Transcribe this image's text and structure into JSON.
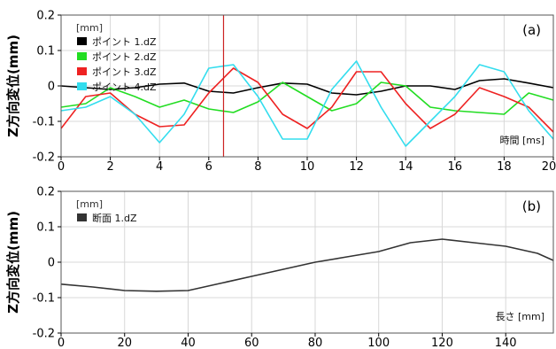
{
  "chart_data": [
    {
      "type": "line",
      "panel_label": "(a)",
      "ylabel": "Z方向変位(mm)",
      "unit_label": "[mm]",
      "xlabel": "時間 [ms]",
      "xlim": [
        0,
        20
      ],
      "ylim": [
        -0.2,
        0.2
      ],
      "x_ticks": [
        "0",
        "2",
        "4",
        "6",
        "8",
        "10",
        "12",
        "14",
        "16",
        "18",
        "20"
      ],
      "y_ticks": [
        "0.2",
        "0.1",
        "0",
        "-0.1",
        "-0.2"
      ],
      "grid": true,
      "legend_position": "top-left",
      "vertical_marker_x": 6.6,
      "colors": {
        "marker": "#cc2222"
      },
      "series": [
        {
          "name": "ポイント 1.dZ",
          "color": "#000000",
          "x": [
            0,
            1,
            2,
            3,
            4,
            5,
            6,
            7,
            8,
            9,
            10,
            11,
            12,
            13,
            14,
            15,
            16,
            17,
            18,
            19,
            20
          ],
          "values": [
            0.0,
            -0.005,
            -0.01,
            -0.005,
            0.005,
            0.008,
            -0.015,
            -0.02,
            -0.005,
            0.008,
            0.005,
            -0.02,
            -0.025,
            -0.015,
            0.0,
            0.0,
            -0.01,
            0.015,
            0.02,
            0.008,
            -0.005
          ]
        },
        {
          "name": "ポイント 2.dZ",
          "color": "#22dd22",
          "x": [
            0,
            1,
            2,
            3,
            4,
            5,
            6,
            7,
            8,
            9,
            10,
            11,
            12,
            13,
            14,
            15,
            16,
            17,
            18,
            19,
            20
          ],
          "values": [
            -0.06,
            -0.05,
            -0.005,
            -0.03,
            -0.06,
            -0.04,
            -0.065,
            -0.075,
            -0.045,
            0.01,
            -0.03,
            -0.07,
            -0.05,
            0.01,
            0.0,
            -0.06,
            -0.07,
            -0.075,
            -0.08,
            -0.02,
            -0.04
          ]
        },
        {
          "name": "ポイント 3.dZ",
          "color": "#ee2222",
          "x": [
            0,
            1,
            2,
            3,
            4,
            5,
            6,
            7,
            8,
            9,
            10,
            11,
            12,
            13,
            14,
            15,
            16,
            17,
            18,
            19,
            20
          ],
          "values": [
            -0.12,
            -0.03,
            -0.02,
            -0.08,
            -0.115,
            -0.11,
            -0.02,
            0.05,
            0.01,
            -0.08,
            -0.12,
            -0.06,
            0.04,
            0.04,
            -0.05,
            -0.12,
            -0.08,
            -0.005,
            -0.03,
            -0.06,
            -0.13
          ]
        },
        {
          "name": "ポイント 4.dZ",
          "color": "#33ddee",
          "x": [
            0,
            1,
            2,
            3,
            4,
            5,
            6,
            7,
            8,
            9,
            10,
            11,
            12,
            13,
            14,
            15,
            16,
            17,
            18,
            19,
            20
          ],
          "values": [
            -0.07,
            -0.06,
            -0.03,
            -0.08,
            -0.16,
            -0.08,
            0.05,
            0.06,
            -0.03,
            -0.15,
            -0.15,
            -0.01,
            0.07,
            -0.06,
            -0.17,
            -0.1,
            -0.03,
            0.06,
            0.04,
            -0.07,
            -0.15
          ]
        }
      ]
    },
    {
      "type": "line",
      "panel_label": "(b)",
      "ylabel": "Z方向変位(mm)",
      "unit_label": "[mm]",
      "xlabel": "長さ [mm]",
      "xlim": [
        0,
        155
      ],
      "ylim": [
        -0.2,
        0.2
      ],
      "x_ticks": [
        "0",
        "20",
        "40",
        "60",
        "80",
        "100",
        "120",
        "140"
      ],
      "y_ticks": [
        "0.2",
        "0.1",
        "0",
        "-0.1",
        "-0.2"
      ],
      "grid": true,
      "legend_position": "top-left",
      "series": [
        {
          "name": "断面 1.dZ",
          "color": "#333333",
          "x": [
            0,
            10,
            20,
            30,
            40,
            50,
            60,
            70,
            80,
            90,
            100,
            110,
            120,
            130,
            140,
            150,
            155
          ],
          "values": [
            -0.062,
            -0.07,
            -0.08,
            -0.082,
            -0.08,
            -0.06,
            -0.04,
            -0.02,
            0.0,
            0.015,
            0.03,
            0.055,
            0.065,
            0.055,
            0.045,
            0.025,
            0.005
          ]
        }
      ]
    }
  ]
}
